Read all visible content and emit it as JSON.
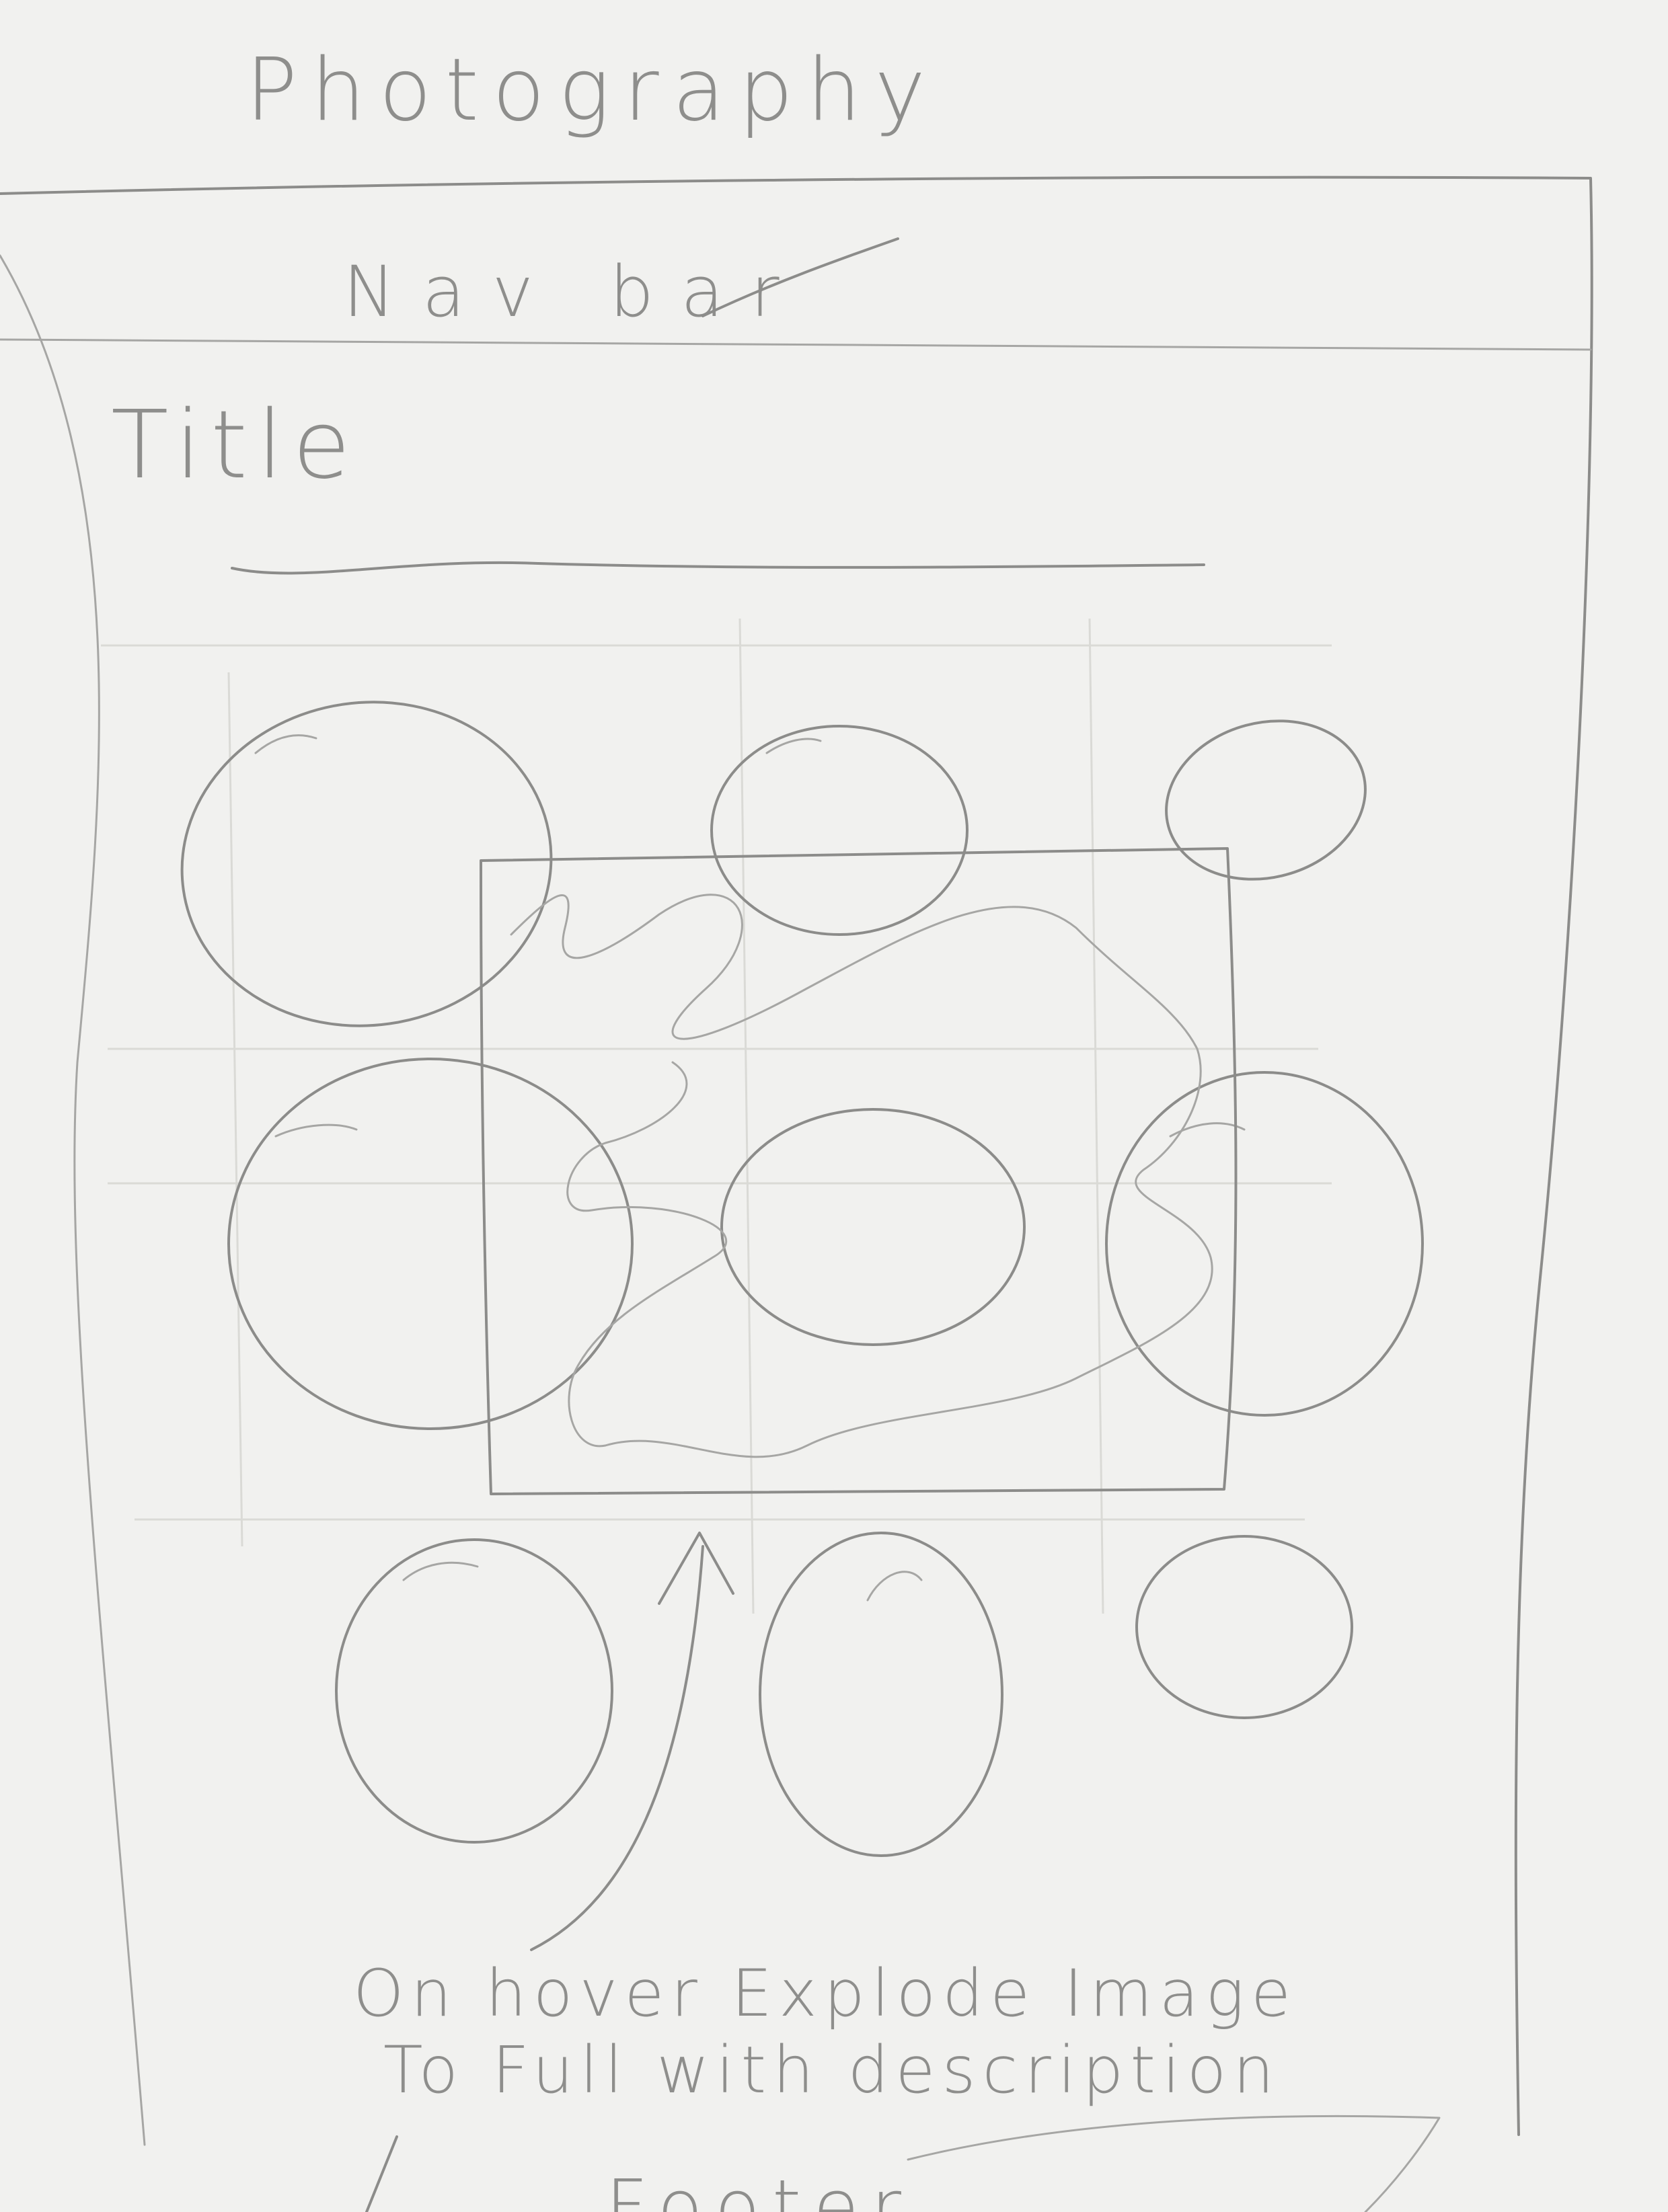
{
  "site_title": "Photography",
  "nav_label": "Nav bar",
  "page_title_label": "Title",
  "annotation": {
    "line1": "On hover Explode Image",
    "line2": "To Full with description"
  },
  "footer_label": "Footer"
}
